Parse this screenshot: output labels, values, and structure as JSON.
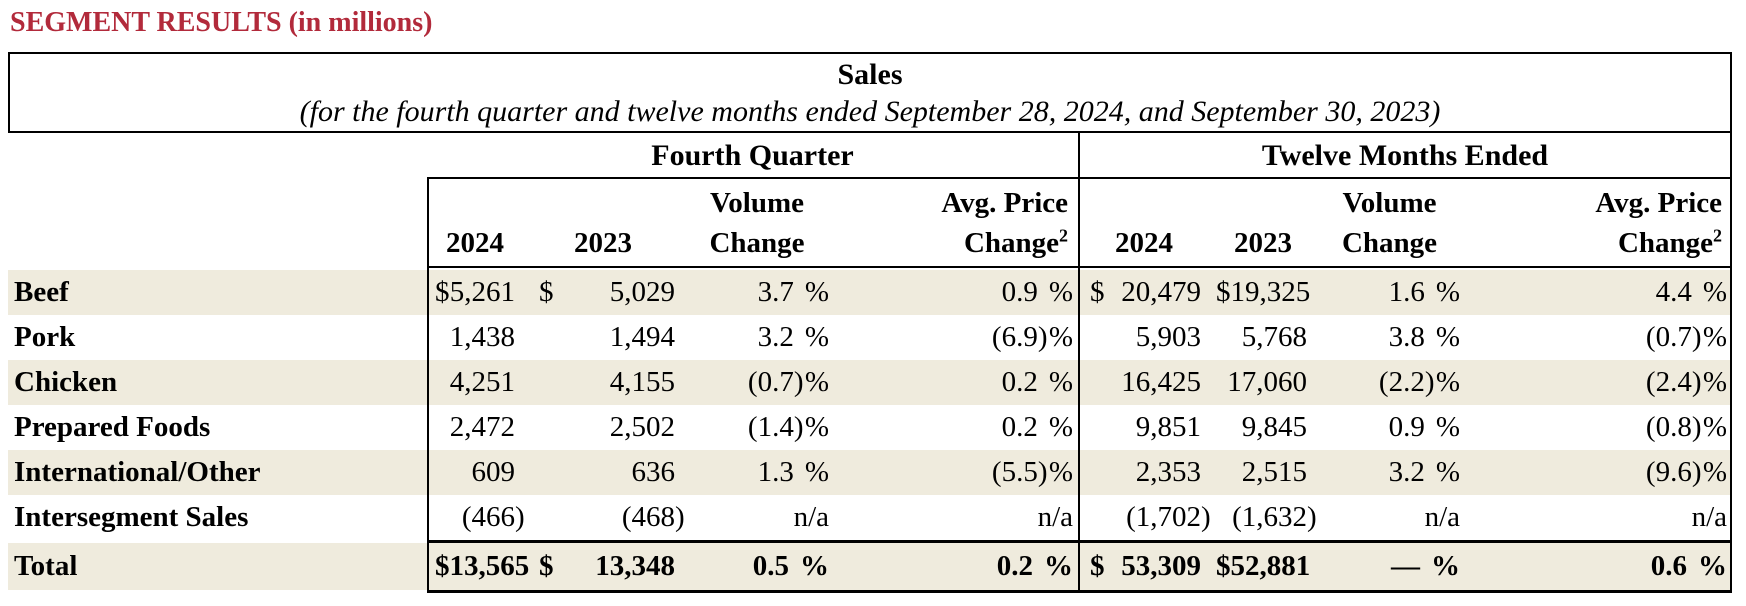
{
  "title": {
    "text": "SEGMENT RESULTS (in millions)"
  },
  "colors": {
    "title_red": "#B22A3B",
    "row_shade": "#EFEBDD",
    "border": "#000000",
    "background": "#FFFFFF"
  },
  "table": {
    "header": {
      "title": "Sales",
      "subtitle": "(for the fourth quarter and twelve months ended September 28, 2024, and September 30, 2023)"
    },
    "groups": [
      {
        "label": "Fourth Quarter"
      },
      {
        "label": "Twelve Months Ended"
      }
    ],
    "sub_headers": {
      "volume": "Volume",
      "price": "Avg. Price",
      "y2024": "2024",
      "y2023": "2023",
      "change": "Change",
      "change_sup": "2"
    },
    "rows": [
      {
        "label": "Beef",
        "shaded": true,
        "total": false,
        "cells": [
          {
            "col": "fq2024",
            "dollar": "$",
            "value": "5,261"
          },
          {
            "col": "fq2023",
            "dollar": "$",
            "value": "5,029"
          },
          {
            "col": "fqvol",
            "value": "3.7",
            "unit": "%"
          },
          {
            "col": "fqprice",
            "value": "0.9",
            "unit": "%"
          },
          {
            "col": "tm2024",
            "dollar": "$",
            "value": "20,479"
          },
          {
            "col": "tm2023",
            "dollar": "$",
            "value": "19,325"
          },
          {
            "col": "tmvol",
            "value": "1.6",
            "unit": "%"
          },
          {
            "col": "tmprice",
            "value": "4.4",
            "unit": "%"
          }
        ]
      },
      {
        "label": "Pork",
        "shaded": false,
        "total": false,
        "cells": [
          {
            "col": "fq2024",
            "dollar": "",
            "value": "1,438"
          },
          {
            "col": "fq2023",
            "dollar": "",
            "value": "1,494"
          },
          {
            "col": "fqvol",
            "value": "3.2",
            "unit": "%"
          },
          {
            "col": "fqprice",
            "value": "(6.9)",
            "unit": "%"
          },
          {
            "col": "tm2024",
            "dollar": "",
            "value": "5,903"
          },
          {
            "col": "tm2023",
            "dollar": "",
            "value": "5,768"
          },
          {
            "col": "tmvol",
            "value": "3.8",
            "unit": "%"
          },
          {
            "col": "tmprice",
            "value": "(0.7)",
            "unit": "%"
          }
        ]
      },
      {
        "label": "Chicken",
        "shaded": true,
        "total": false,
        "cells": [
          {
            "col": "fq2024",
            "dollar": "",
            "value": "4,251"
          },
          {
            "col": "fq2023",
            "dollar": "",
            "value": "4,155"
          },
          {
            "col": "fqvol",
            "value": "(0.7)",
            "unit": "%"
          },
          {
            "col": "fqprice",
            "value": "0.2",
            "unit": "%"
          },
          {
            "col": "tm2024",
            "dollar": "",
            "value": "16,425"
          },
          {
            "col": "tm2023",
            "dollar": "",
            "value": "17,060"
          },
          {
            "col": "tmvol",
            "value": "(2.2)",
            "unit": "%"
          },
          {
            "col": "tmprice",
            "value": "(2.4)",
            "unit": "%"
          }
        ]
      },
      {
        "label": "Prepared Foods",
        "shaded": false,
        "total": false,
        "cells": [
          {
            "col": "fq2024",
            "dollar": "",
            "value": "2,472"
          },
          {
            "col": "fq2023",
            "dollar": "",
            "value": "2,502"
          },
          {
            "col": "fqvol",
            "value": "(1.4)",
            "unit": "%"
          },
          {
            "col": "fqprice",
            "value": "0.2",
            "unit": "%"
          },
          {
            "col": "tm2024",
            "dollar": "",
            "value": "9,851"
          },
          {
            "col": "tm2023",
            "dollar": "",
            "value": "9,845"
          },
          {
            "col": "tmvol",
            "value": "0.9",
            "unit": "%"
          },
          {
            "col": "tmprice",
            "value": "(0.8)",
            "unit": "%"
          }
        ]
      },
      {
        "label": "International/Other",
        "shaded": true,
        "total": false,
        "cells": [
          {
            "col": "fq2024",
            "dollar": "",
            "value": "609"
          },
          {
            "col": "fq2023",
            "dollar": "",
            "value": "636"
          },
          {
            "col": "fqvol",
            "value": "1.3",
            "unit": "%"
          },
          {
            "col": "fqprice",
            "value": "(5.5)",
            "unit": "%"
          },
          {
            "col": "tm2024",
            "dollar": "",
            "value": "2,353"
          },
          {
            "col": "tm2023",
            "dollar": "",
            "value": "2,515"
          },
          {
            "col": "tmvol",
            "value": "3.2",
            "unit": "%"
          },
          {
            "col": "tmprice",
            "value": "(9.6)",
            "unit": "%"
          }
        ]
      },
      {
        "label": "Intersegment Sales",
        "shaded": false,
        "total": false,
        "cells": [
          {
            "col": "fq2024",
            "dollar": "",
            "value": "(466)"
          },
          {
            "col": "fq2023",
            "dollar": "",
            "value": "(468)"
          },
          {
            "col": "fqvol",
            "value": "n/a"
          },
          {
            "col": "fqprice",
            "value": "n/a"
          },
          {
            "col": "tm2024",
            "dollar": "",
            "value": "(1,702)"
          },
          {
            "col": "tm2023",
            "dollar": "",
            "value": "(1,632)"
          },
          {
            "col": "tmvol",
            "value": "n/a"
          },
          {
            "col": "tmprice",
            "value": "n/a"
          }
        ]
      },
      {
        "label": "Total",
        "shaded": true,
        "total": true,
        "cells": [
          {
            "col": "fq2024",
            "dollar": "$",
            "value": "13,565"
          },
          {
            "col": "fq2023",
            "dollar": "$",
            "value": "13,348"
          },
          {
            "col": "fqvol",
            "value": "0.5",
            "unit": "%"
          },
          {
            "col": "fqprice",
            "value": "0.2",
            "unit": "%"
          },
          {
            "col": "tm2024",
            "dollar": "$",
            "value": "53,309"
          },
          {
            "col": "tm2023",
            "dollar": "$",
            "value": "52,881"
          },
          {
            "col": "tmvol",
            "value": "—",
            "unit": "%"
          },
          {
            "col": "tmprice",
            "value": "0.6",
            "unit": "%"
          }
        ]
      }
    ]
  }
}
